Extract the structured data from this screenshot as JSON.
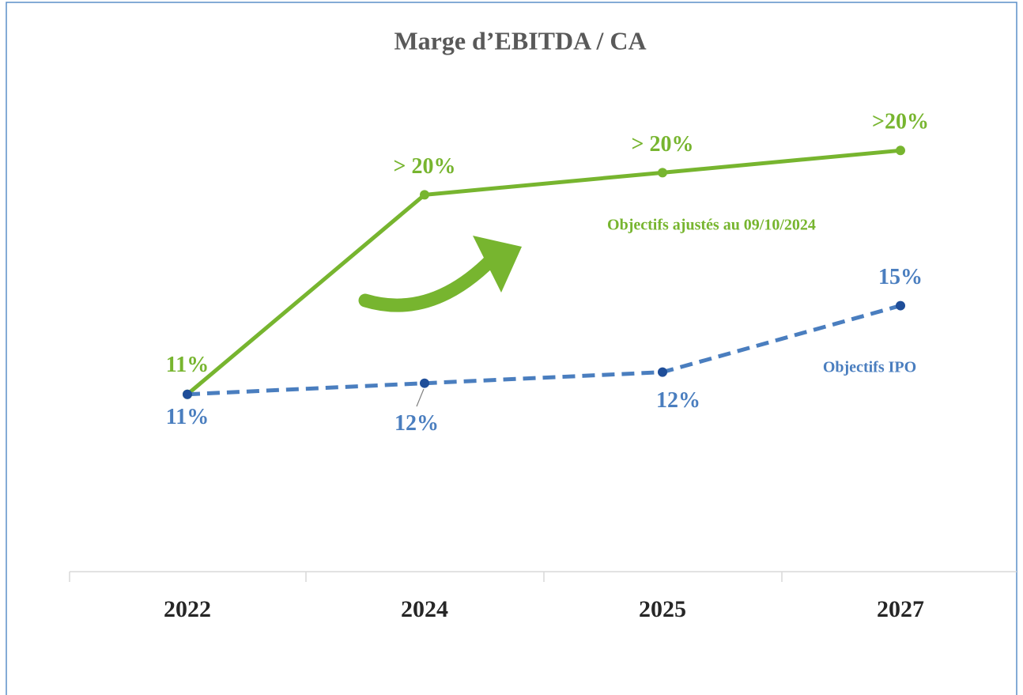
{
  "chart_data": {
    "type": "line",
    "title": "Marge d’EBITDA / CA",
    "categories": [
      "2022",
      "2024",
      "2025",
      "2027"
    ],
    "series": [
      {
        "name": "Objectifs ajustés au 09/10/2024",
        "color": "#77b52f",
        "dashed": false,
        "values": [
          11,
          20,
          21,
          22
        ],
        "value_labels": [
          "11%",
          "> 20%",
          "> 20%",
          ">20%"
        ]
      },
      {
        "name": "Objectifs IPO",
        "color": "#4a7ebf",
        "marker_color": "#1f4e99",
        "dashed": true,
        "values": [
          11,
          11.5,
          12,
          15
        ],
        "value_labels": [
          "11%",
          "12%",
          "12%",
          "15%"
        ]
      }
    ],
    "ylim": [
      3,
      25
    ],
    "grid": false
  }
}
